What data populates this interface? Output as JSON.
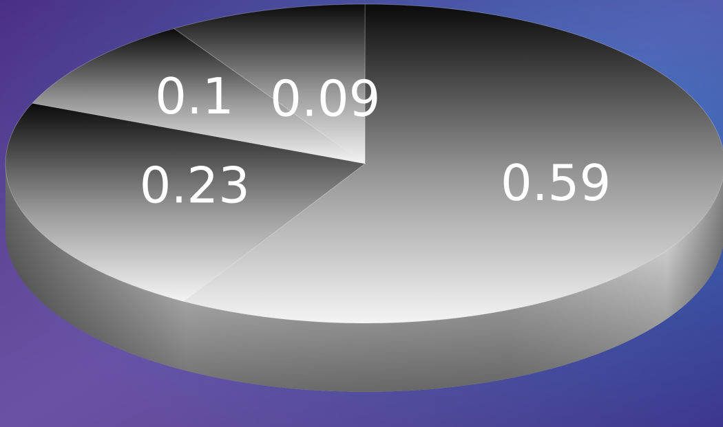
{
  "chart_data": {
    "type": "pie",
    "style": "3d",
    "title": "",
    "values": [
      0.59,
      0.23,
      0.1,
      0.09
    ],
    "labels": [
      "0.59",
      "0.23",
      "0.1",
      "0.09"
    ],
    "legend": "none"
  }
}
